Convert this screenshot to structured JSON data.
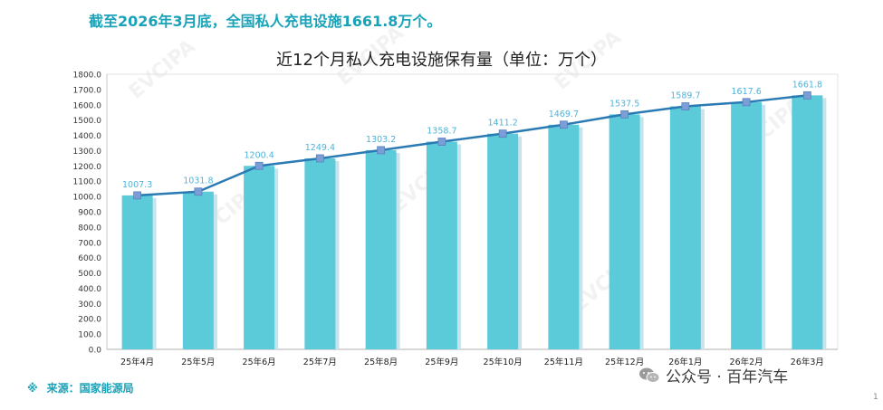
{
  "headline": "截至2026年3月底，全国私人充电设施1661.8万个。",
  "source": {
    "mark": "※",
    "text": "来源：国家能源局"
  },
  "wechat_label": "公众号 · 百年汽车",
  "page_number": "1",
  "watermark_text": "EVCIPA",
  "colors": {
    "bar": "#5ccbd9",
    "bar_shadow": "#c7e3ec",
    "line": "#2a7ab4",
    "marker": "#7b9ed6",
    "data_label": "#4fb3d9",
    "headline": "#1aa3b8"
  },
  "chart_data": {
    "type": "bar",
    "title": "近12个月私人充电设施保有量（单位：万个）",
    "categories": [
      "25年4月",
      "25年5月",
      "25年6月",
      "25年7月",
      "25年8月",
      "25年9月",
      "25年10月",
      "25年11月",
      "25年12月",
      "26年1月",
      "26年2月",
      "26年3月"
    ],
    "values": [
      1007.3,
      1031.8,
      1200.4,
      1249.4,
      1303.2,
      1358.7,
      1411.2,
      1469.7,
      1537.5,
      1589.7,
      1617.6,
      1661.8
    ],
    "data_labels": [
      "1007.3",
      "1031.8",
      "1200.4",
      "1249.4",
      "1303.2",
      "1358.7",
      "1411.2",
      "1469.7",
      "1537.5",
      "1589.7",
      "1617.6",
      "1661.8"
    ],
    "overlay": "line",
    "ylim": [
      0,
      1800
    ],
    "ytick_step": 100,
    "yticks": [
      "0.0",
      "100.0",
      "200.0",
      "300.0",
      "400.0",
      "500.0",
      "600.0",
      "700.0",
      "800.0",
      "900.0",
      "1000.0",
      "1100.0",
      "1200.0",
      "1300.0",
      "1400.0",
      "1500.0",
      "1600.0",
      "1700.0",
      "1800.0"
    ],
    "xlabel": "",
    "ylabel": "",
    "grid": false,
    "legend": "none"
  }
}
